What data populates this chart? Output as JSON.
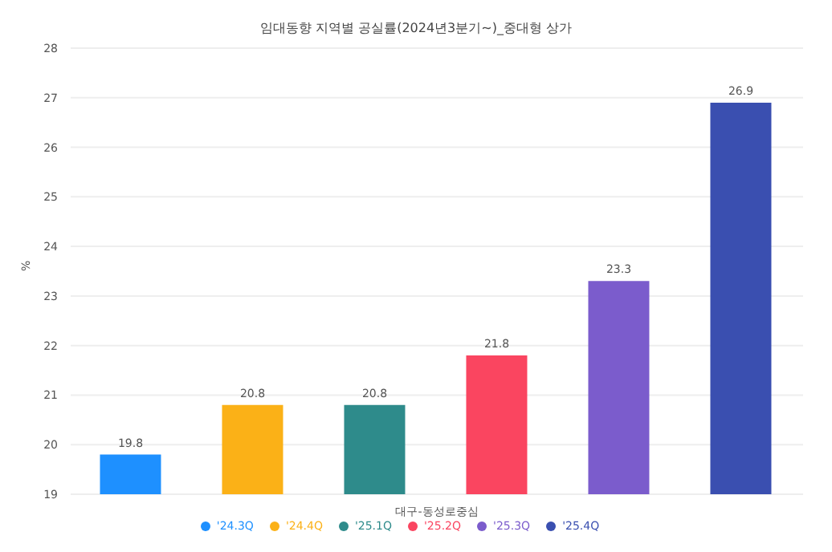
{
  "chart_data": {
    "type": "bar",
    "title": "임대동향 지역별 공실률(2024년3분기~)_중대형 상가",
    "ylabel": "%",
    "categories": [
      "대구-동성로중심"
    ],
    "series": [
      {
        "name": "'24.3Q",
        "color": "#1e90ff",
        "values": [
          19.8
        ]
      },
      {
        "name": "'24.4Q",
        "color": "#fbb117",
        "values": [
          20.8
        ]
      },
      {
        "name": "'25.1Q",
        "color": "#2e8b8b",
        "values": [
          20.8
        ]
      },
      {
        "name": "'25.2Q",
        "color": "#fa4560",
        "values": [
          21.8
        ]
      },
      {
        "name": "'25.3Q",
        "color": "#7b5ccc",
        "values": [
          23.3
        ]
      },
      {
        "name": "'25.4Q",
        "color": "#3a4fb0",
        "values": [
          26.9
        ]
      }
    ],
    "ylim": [
      19,
      28
    ],
    "yticks": [
      19,
      20,
      21,
      22,
      23,
      24,
      25,
      26,
      27,
      28
    ],
    "grid": "y",
    "legend": "bottom",
    "data_labels": true
  }
}
